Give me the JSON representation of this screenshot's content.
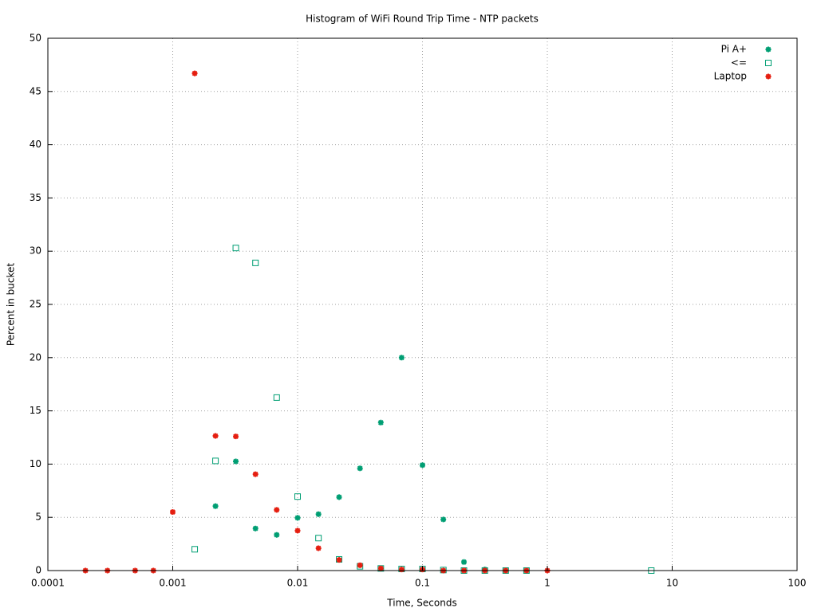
{
  "chart_data": {
    "type": "scatter",
    "title": "Histogram of WiFi Round Trip Time - NTP packets",
    "x_label": "Time, Seconds",
    "y_label": "Percent in bucket",
    "x_scale": "log",
    "xlim": [
      0.0001,
      100
    ],
    "xticks": [
      0.0001,
      0.001,
      0.01,
      0.1,
      1,
      10,
      100
    ],
    "ylim": [
      0,
      50
    ],
    "yticks": [
      0,
      5,
      10,
      15,
      20,
      25,
      30,
      35,
      40,
      45,
      50
    ],
    "grid": true,
    "legend": "top-right",
    "series": [
      {
        "name": "Pi A+",
        "color": "#009e73",
        "marker": "star",
        "x": [
          0.0022,
          0.0032,
          0.0046,
          0.0068,
          0.01,
          0.0147,
          0.0215,
          0.0316,
          0.0464,
          0.0681,
          0.1,
          0.147,
          0.215,
          0.316,
          0.464,
          0.681
        ],
        "values": [
          6.05,
          10.25,
          3.95,
          3.35,
          4.95,
          5.3,
          6.9,
          9.6,
          13.9,
          20.0,
          9.9,
          4.8,
          0.8,
          0.1,
          0,
          0
        ]
      },
      {
        "name": "<=",
        "color": "#009e73",
        "marker": "square",
        "x": [
          0.0015,
          0.0022,
          0.0032,
          0.0046,
          0.0068,
          0.01,
          0.0147,
          0.0215,
          0.0316,
          0.0464,
          0.0681,
          0.1,
          0.147,
          0.215,
          0.316,
          0.464,
          0.681,
          6.8
        ],
        "values": [
          2.0,
          10.3,
          30.3,
          28.9,
          16.25,
          6.95,
          3.05,
          1.05,
          0.4,
          0.2,
          0.15,
          0.15,
          0.05,
          0,
          0,
          0,
          0,
          0
        ]
      },
      {
        "name": "Laptop",
        "color": "#e51e10",
        "marker": "star",
        "x": [
          0.0002,
          0.0003,
          0.0005,
          0.0007,
          0.001,
          0.0015,
          0.0022,
          0.0032,
          0.0046,
          0.0068,
          0.01,
          0.0147,
          0.0215,
          0.0316,
          0.0464,
          0.0681,
          0.1,
          0.147,
          0.215,
          0.316,
          0.464,
          0.681,
          1
        ],
        "values": [
          0,
          0,
          0,
          0,
          5.5,
          46.7,
          12.65,
          12.6,
          9.05,
          5.7,
          3.75,
          2.1,
          1.0,
          0.5,
          0.2,
          0.1,
          0.1,
          0,
          0,
          0,
          0,
          0,
          0
        ]
      }
    ]
  }
}
